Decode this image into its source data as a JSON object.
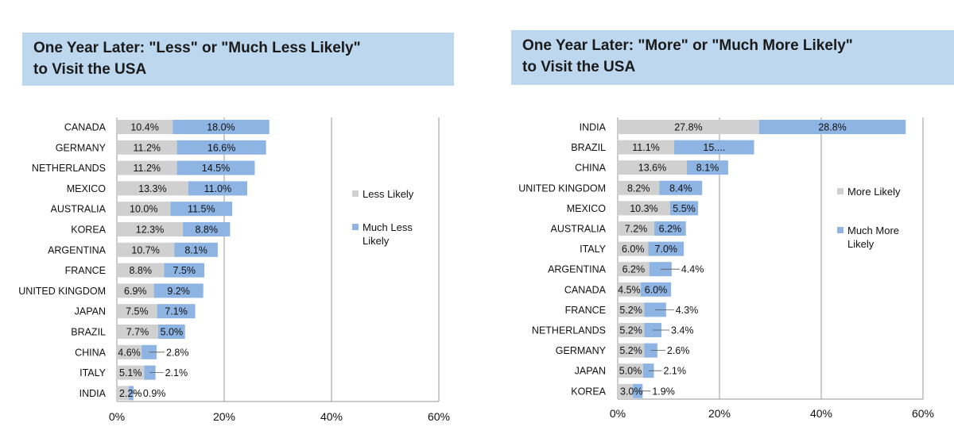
{
  "chart_data": [
    {
      "type": "bar",
      "orientation": "horizontal",
      "stacked": true,
      "title_lines": [
        "One Year Later: \"Less\" or \"Much Less Likely\"",
        "to Visit the USA"
      ],
      "categories": [
        "CANADA",
        "GERMANY",
        "NETHERLANDS",
        "MEXICO",
        "AUSTRALIA",
        "KOREA",
        "ARGENTINA",
        "FRANCE",
        "UNITED KINGDOM",
        "JAPAN",
        "BRAZIL",
        "CHINA",
        "ITALY",
        "INDIA"
      ],
      "series": [
        {
          "name": "Less Likely",
          "color": "#d0d0d0",
          "values": [
            10.4,
            11.2,
            11.2,
            13.3,
            10.0,
            12.3,
            10.7,
            8.8,
            6.9,
            7.5,
            7.7,
            4.6,
            5.1,
            2.2
          ],
          "labels": [
            "10.4%",
            "11.2%",
            "11.2%",
            "13.3%",
            "10.0%",
            "12.3%",
            "10.7%",
            "8.8%",
            "6.9%",
            "7.5%",
            "7.7%",
            "4.6%",
            "5.1%",
            "2.2%"
          ]
        },
        {
          "name": "Much Less Likely",
          "color": "#8eb4e3",
          "values": [
            18.0,
            16.6,
            14.5,
            11.0,
            11.5,
            8.8,
            8.1,
            7.5,
            9.2,
            7.1,
            5.0,
            2.8,
            2.1,
            0.9
          ],
          "labels": [
            "18.0%",
            "16.6%",
            "14.5%",
            "11.0%",
            "11.5%",
            "8.8%",
            "8.1%",
            "7.5%",
            "9.2%",
            "7.1%",
            "5.0%",
            "2.8%",
            "2.1%",
            "0.9%"
          ]
        }
      ],
      "x_ticks": [
        "0%",
        "20%",
        "40%",
        "60%"
      ],
      "xlim": [
        0,
        60
      ],
      "grid": true,
      "legend": [
        {
          "label_lines": [
            "Less Likely"
          ]
        },
        {
          "label_lines": [
            "Much Less",
            "Likely"
          ]
        }
      ],
      "legend_position": "right"
    },
    {
      "type": "bar",
      "orientation": "horizontal",
      "stacked": true,
      "title_lines": [
        "One Year Later: \"More\" or \"Much More Likely\"",
        "to Visit the USA"
      ],
      "categories": [
        "INDIA",
        "BRAZIL",
        "CHINA",
        "UNITED KINGDOM",
        "MEXICO",
        "AUSTRALIA",
        "ITALY",
        "ARGENTINA",
        "CANADA",
        "FRANCE",
        "NETHERLANDS",
        "GERMANY",
        "JAPAN",
        "KOREA"
      ],
      "series": [
        {
          "name": "More Likely",
          "color": "#d0d0d0",
          "values": [
            27.8,
            11.1,
            13.6,
            8.2,
            10.3,
            7.2,
            6.0,
            6.2,
            4.5,
            5.2,
            5.2,
            5.2,
            5.0,
            3.0
          ],
          "labels": [
            "27.8%",
            "11.1%",
            "13.6%",
            "8.2%",
            "10.3%",
            "7.2%",
            "6.0%",
            "6.2%",
            "4.5%",
            "5.2%",
            "5.2%",
            "5.2%",
            "5.0%",
            "3.0%"
          ]
        },
        {
          "name": "Much More Likely",
          "color": "#8eb4e3",
          "values": [
            28.8,
            15.7,
            8.1,
            8.4,
            5.5,
            6.2,
            7.0,
            4.4,
            6.0,
            4.3,
            3.4,
            2.6,
            2.1,
            1.9
          ],
          "labels": [
            "28.8%",
            "15....",
            "8.1%",
            "8.4%",
            "5.5%",
            "6.2%",
            "7.0%",
            "4.4%",
            "6.0%",
            "4.3%",
            "3.4%",
            "2.6%",
            "2.1%",
            "1.9%"
          ]
        }
      ],
      "x_ticks": [
        "0%",
        "20%",
        "40%",
        "60%"
      ],
      "xlim": [
        0,
        60
      ],
      "grid": true,
      "legend": [
        {
          "label_lines": [
            "More Likely"
          ]
        },
        {
          "label_lines": [
            "Much More",
            "Likely"
          ]
        }
      ],
      "legend_position": "right"
    }
  ]
}
